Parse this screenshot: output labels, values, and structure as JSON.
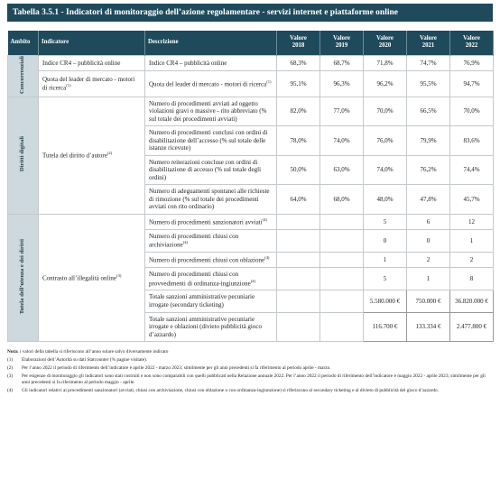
{
  "title": "Tabella 3.5.1 - Indicatori di monitoraggio dell’azione regolamentare - servizi internet e piattaforme online",
  "table": {
    "header": [
      "Ambito",
      "Indicatore",
      "Descrizione",
      "Valore 2018",
      "Valore 2019",
      "Valore 2020",
      "Valore 2021",
      "Valore 2022"
    ],
    "groups": [
      {
        "ambito": "Concorrenziali",
        "indicators": [
          {
            "label": "Indice CR4 – pubblicità online",
            "rows": [
              {
                "description": "Indice CR4 – pubblicità online",
                "values": [
                  "68,3%",
                  "68,7%",
                  "71,8%",
                  "74,7%",
                  "76,9%"
                ]
              }
            ]
          },
          {
            "label": "Quota del leader di mercato - motori di ricerca",
            "note": "(1)",
            "rows": [
              {
                "description": "Quota del leader di mercato - motori di ricerca",
                "note": "(1)",
                "values": [
                  "95,1%",
                  "96,3%",
                  "96,2%",
                  "95,5%",
                  "94,7%"
                ]
              }
            ]
          }
        ]
      },
      {
        "ambito": "Diritti digitali",
        "indicators": [
          {
            "label": "Tutela del diritto d’autore",
            "note": "(2)",
            "rows": [
              {
                "description": "Numero di procedimenti avviati ad oggetto violazioni gravi o massive - rito abbreviato (% sul totale dei procedimenti avviati)",
                "values": [
                  "82,0%",
                  "77,0%",
                  "70,0%",
                  "66,5%",
                  "70,0%"
                ]
              },
              {
                "description": "Numero di procedimenti conclusi con ordini di disabilitazione dell’accesso (% sul totale delle istanze ricevute)",
                "values": [
                  "78,0%",
                  "74,0%",
                  "76,0%",
                  "79,9%",
                  "83,6%"
                ]
              },
              {
                "description": "Numero reiterazioni concluse con ordini di disabilitazione di accesso (% sul totale degli ordini)",
                "values": [
                  "50,0%",
                  "63,0%",
                  "74,0%",
                  "76,2%",
                  "74,4%"
                ]
              },
              {
                "description": "Numero di adeguamenti spontanei alle richieste di rimozione (% sul totale dei procedimenti avviati con rito ordinario)",
                "values": [
                  "64,0%",
                  "68,0%",
                  "48,0%",
                  "47,8%",
                  "45,7%"
                ]
              }
            ]
          }
        ]
      },
      {
        "ambito": "Tutela dell’utenza e dei diritti",
        "indicators": [
          {
            "label": "Contrasto all’illegalità online",
            "note": "(3)",
            "rows": [
              {
                "description": "Numero di procedimenti sanzionatori avviati",
                "note": "(4)",
                "values": [
                  null,
                  null,
                  "5",
                  "6",
                  "12"
                ]
              },
              {
                "description": "Numero di procedimenti chiusi con archiviazione",
                "note": "(4)",
                "values": [
                  null,
                  null,
                  "0",
                  "0",
                  "1"
                ]
              },
              {
                "description": "Numero di procedimenti chiusi con oblazione",
                "note": "(4)",
                "values": [
                  null,
                  null,
                  "1",
                  "2",
                  "2"
                ]
              },
              {
                "description": "Numero di procedimenti chiusi con provvedimenti di ordinanza-ingiunzione",
                "note": "(4)",
                "values": [
                  null,
                  null,
                  "5",
                  "1",
                  "8"
                ]
              },
              {
                "description": "Totale sanzioni amministrative pecuniarie irrogate (secondary ticketing)",
                "values": [
                  null,
                  null,
                  "5.580.000 €",
                  "750.000 €",
                  "36.820.000 €"
                ]
              },
              {
                "description": "Totale sanzioni amministrative pecuniarie irrogate e oblazioni (divieto pubblicità gioco d’azzardo)",
                "values": [
                  null,
                  null,
                  "116.700 €",
                  "133.334 €",
                  "2.477.800 €"
                ]
              }
            ]
          }
        ]
      }
    ]
  },
  "notes": {
    "label": "Nota:",
    "text": "i valori della tabella si riferiscono all’anno solare salvo diversamente indicato",
    "items": [
      {
        "marker": "(1)",
        "text": "Elaborazioni dell’Autorità su dati Statcounter (% pagine visitate)."
      },
      {
        "marker": "(2)",
        "text": "Per l’anno 2022 il periodo di riferimento dell’indicatore è aprile 2022 - marzo 2023; similmente per gli anni precedenti si fa riferimento al periodo aprile - marzo."
      },
      {
        "marker": "(3)",
        "text": "Per esigenze di monitoraggio gli indicatori sono stati costruiti e non sono comparabili con quelli pubblicati nella Relazione annuale 2022. Per l’anno 2022 il periodo di riferimento dell’indicatore è maggio 2022 - aprile 2023; similmente per gli anni precedenti si fa riferimento al periodo maggio - aprile."
      },
      {
        "marker": "(4)",
        "text": "Gli indicatori relativi ai procedimenti sanzionatori (avviati, chiusi con archiviazione, chiusi con oblazione o con ordinanza-ingiunzione) si riferiscono al secondary ticketing e al divieto di pubblicità del gioco d’azzardo."
      }
    ]
  }
}
